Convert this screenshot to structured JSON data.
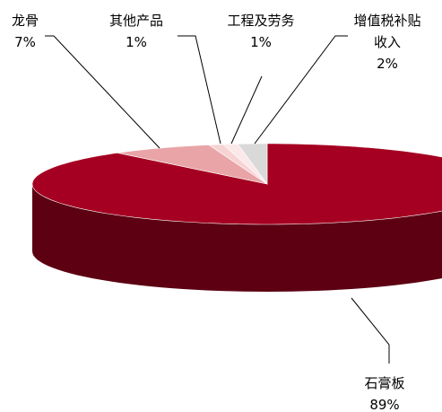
{
  "chart_data": {
    "type": "pie",
    "style": "3d",
    "title": "",
    "categories": [
      "石膏板",
      "龙骨",
      "其他产品",
      "工程及劳务",
      "增值税补贴收入"
    ],
    "values": [
      89,
      7,
      1,
      1,
      2
    ],
    "label_lines": [
      [
        "石膏板",
        "89%"
      ],
      [
        "龙骨",
        "7%"
      ],
      [
        "其他产品",
        "1%"
      ],
      [
        "工程及劳务",
        "1%"
      ],
      [
        "增值税补贴",
        "收入",
        "2%"
      ]
    ],
    "colors": [
      "#A50021",
      "#E9A4A7",
      "#F7D3D4",
      "#FBE8E8",
      "#D9D9D9"
    ],
    "side_colors": [
      "#5C0012",
      "#B07C7E",
      "#C2A6A7",
      "#C7B7B7",
      "#A8A8A8"
    ]
  }
}
